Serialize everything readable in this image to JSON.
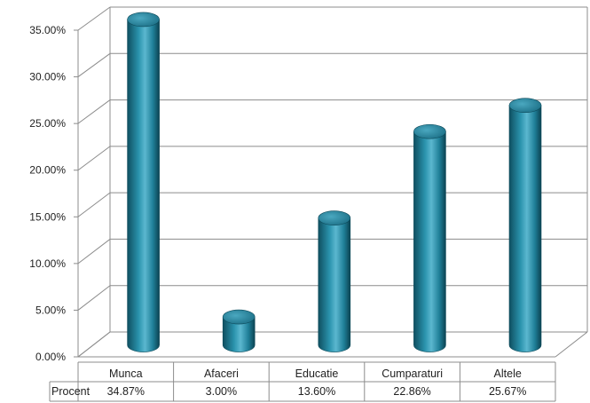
{
  "chart_data": {
    "type": "bar",
    "categories": [
      "Munca",
      "Afaceri",
      "Educatie",
      "Cumparaturi",
      "Altele"
    ],
    "series": [
      {
        "name": "Procent",
        "values": [
          34.87,
          3.0,
          13.6,
          22.86,
          25.67
        ]
      }
    ],
    "value_labels": [
      "34.87%",
      "3.00%",
      "13.60%",
      "22.86%",
      "25.67%"
    ],
    "y_ticks": [
      "0.00%",
      "5.00%",
      "10.00%",
      "15.00%",
      "20.00%",
      "25.00%",
      "30.00%",
      "35.00%"
    ],
    "ylim": [
      0,
      35
    ],
    "title": "",
    "xlabel": "",
    "ylabel": "",
    "grid": true,
    "legend": "data-table",
    "bar_style": "3d-cylinder",
    "colors": {
      "bar": "#1f7f98",
      "bar_light": "#5bb7cf",
      "bar_dark": "#0f4f60",
      "grid": "#8c8c8c"
    }
  }
}
